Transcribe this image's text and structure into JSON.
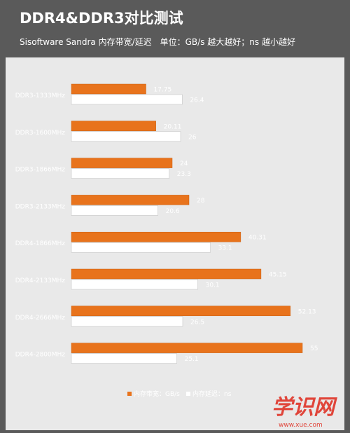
{
  "chart_data": {
    "type": "bar",
    "orientation": "horizontal",
    "title": "DDR4&DDR3对比测试",
    "subtitle": "Sisoftware Sandra 内存带宽/延迟　单位：GB/s 越大越好；ns 越小越好",
    "categories": [
      "DDR3-1333MHz",
      "DDR3-1600MHz",
      "DDR3-1866MHz",
      "DDR3-2133MHz",
      "DDR4-1866MHz",
      "DDR4-2133MHz",
      "DDR4-2666MHz",
      "DDR4-2800MHz"
    ],
    "series": [
      {
        "name": "内存带宽：GB/s",
        "color": "#e8731c",
        "values": [
          17.75,
          20.11,
          24,
          28,
          40.31,
          45.15,
          52.13,
          55
        ]
      },
      {
        "name": "内存延迟：ns",
        "color": "#ffffff",
        "values": [
          26.4,
          26,
          23.3,
          20.6,
          33.1,
          30.1,
          26.5,
          25.1
        ]
      }
    ],
    "value_labels": [
      [
        "17.75",
        "20.11",
        "24",
        "28",
        "40.31",
        "45.15",
        "52.13",
        "55"
      ],
      [
        "26.4",
        "26",
        "23.3",
        "20.6",
        "33.1",
        "30.1",
        "26.5",
        "25.1"
      ]
    ],
    "xlim": [
      0,
      60
    ],
    "grid": false,
    "legend_position": "bottom"
  },
  "colors": {
    "background": "#5a5a5a",
    "plot_area": "#e9e9e9"
  },
  "watermark": {
    "text": "学识网",
    "url": "www.xue.com"
  }
}
